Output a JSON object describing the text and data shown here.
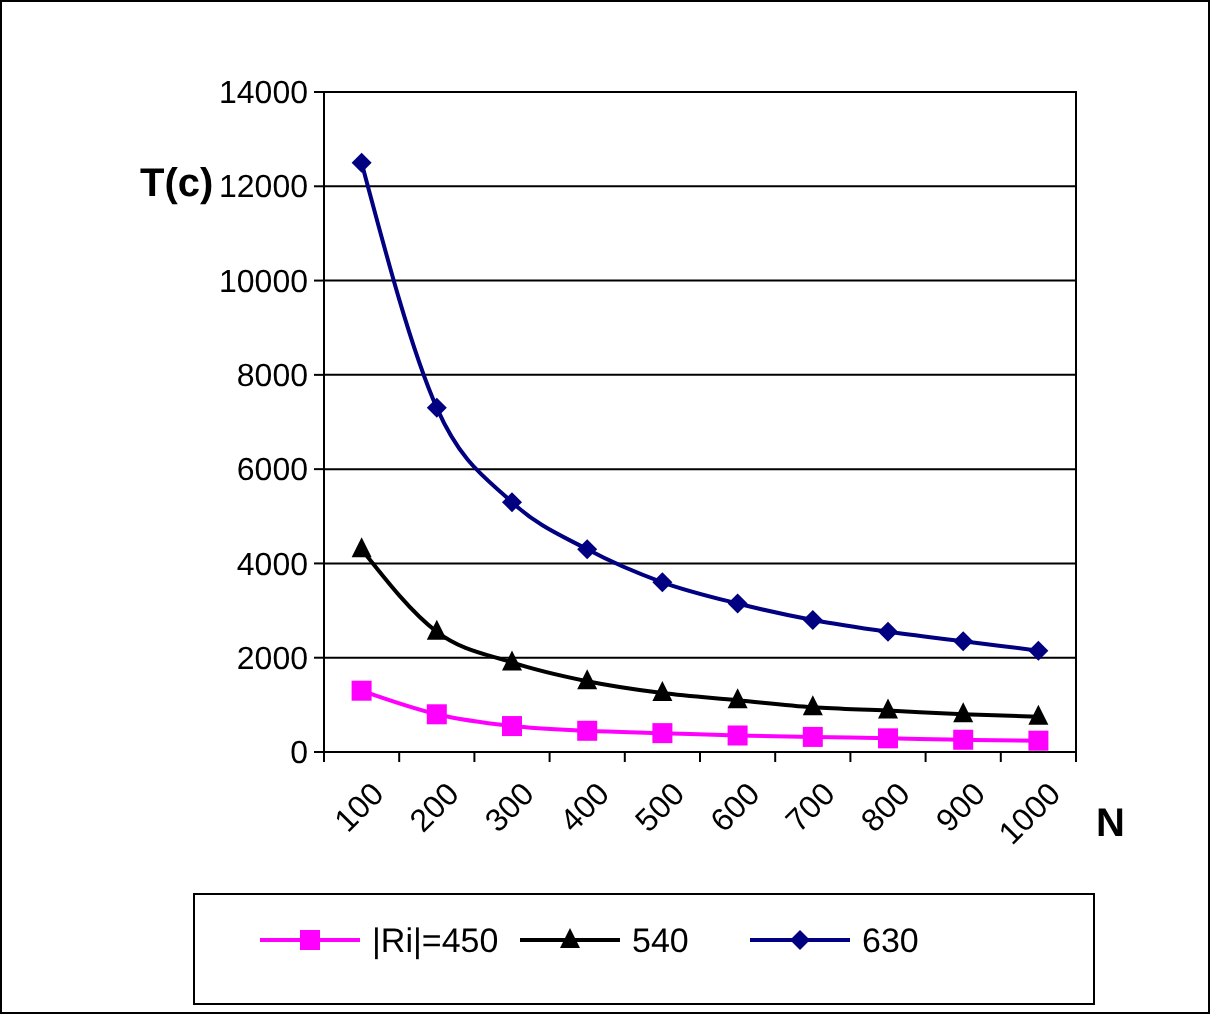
{
  "chart_data": {
    "type": "line",
    "xlabel": "N",
    "ylabel": "T(c)",
    "categories": [
      "100",
      "200",
      "300",
      "400",
      "500",
      "600",
      "700",
      "800",
      "900",
      "1000"
    ],
    "series": [
      {
        "name": "|Ri|=450",
        "color": "#ff00ff",
        "marker": "square",
        "values": [
          1300,
          800,
          550,
          450,
          400,
          350,
          320,
          290,
          260,
          240
        ]
      },
      {
        "name": "540",
        "color": "#000000",
        "marker": "triangle",
        "values": [
          4300,
          2550,
          1900,
          1500,
          1250,
          1100,
          950,
          880,
          800,
          750
        ]
      },
      {
        "name": "630",
        "color": "#000080",
        "marker": "diamond",
        "values": [
          12500,
          7300,
          5300,
          4300,
          3600,
          3150,
          2800,
          2550,
          2350,
          2150
        ]
      }
    ],
    "ylim": [
      0,
      14000
    ],
    "yticks": [
      0,
      2000,
      4000,
      6000,
      8000,
      10000,
      12000,
      14000
    ],
    "grid": "y",
    "legend": "bottom"
  }
}
